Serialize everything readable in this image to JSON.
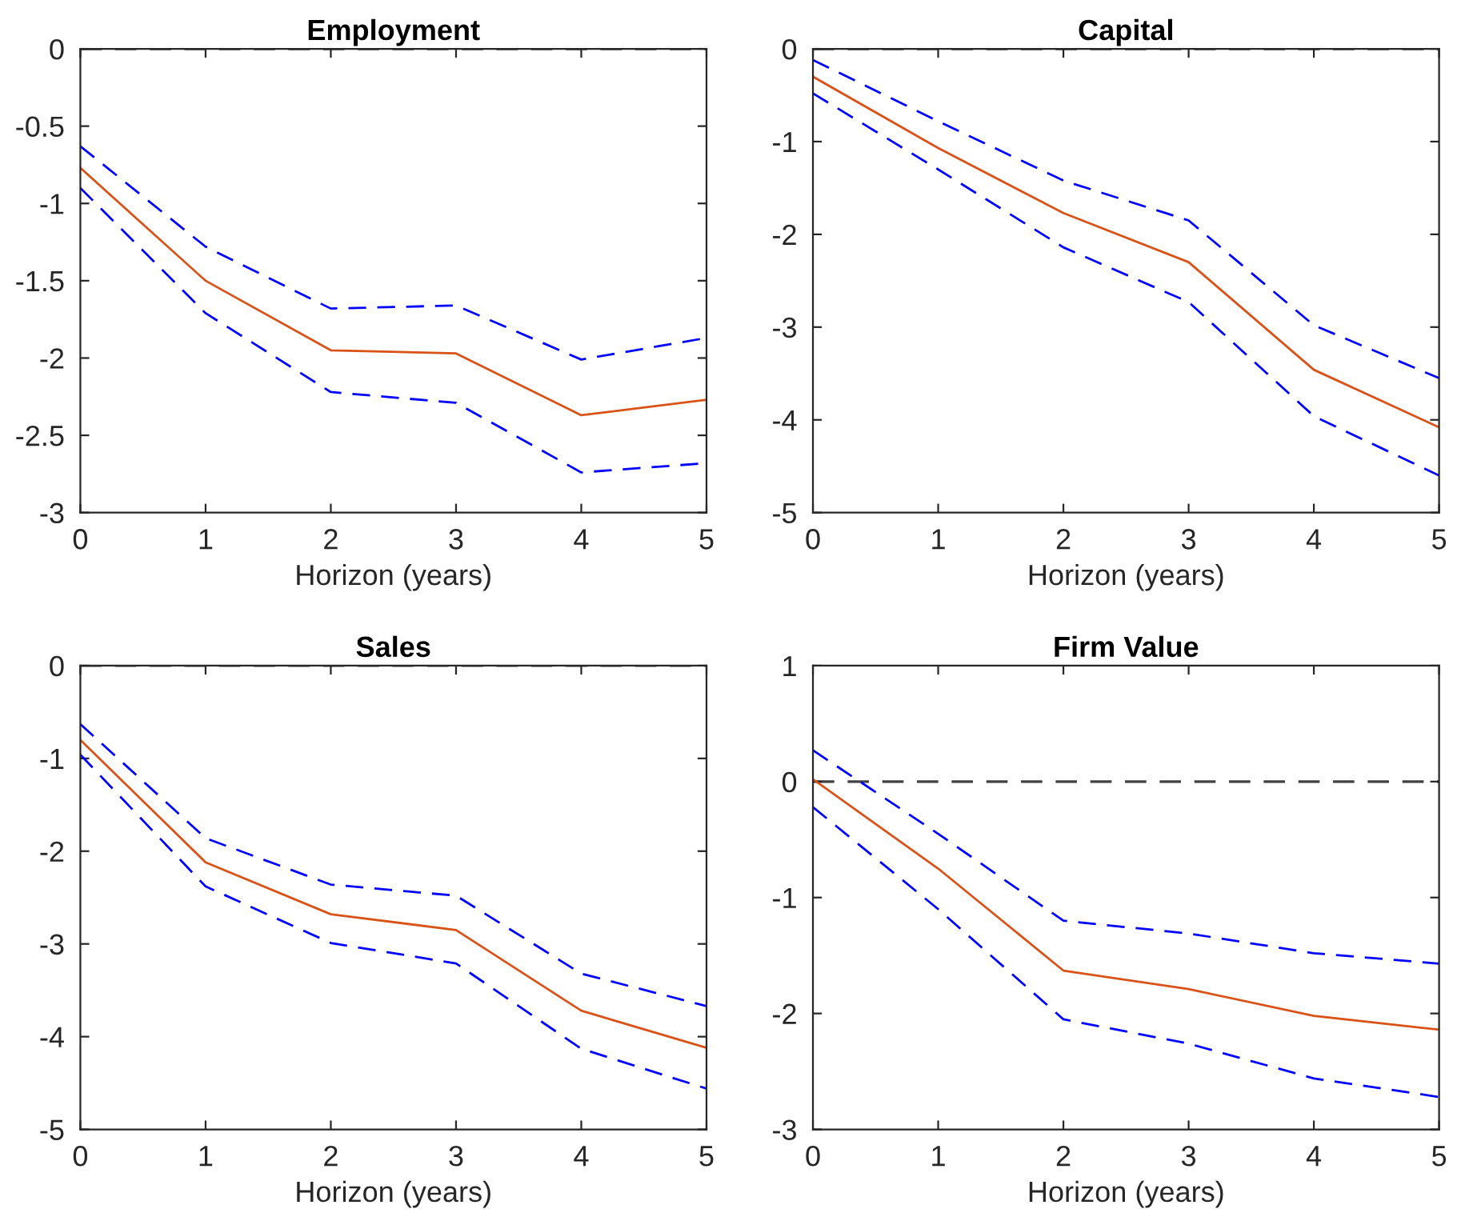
{
  "chart_data": [
    {
      "type": "line",
      "title": "Employment",
      "xlabel": "Horizon (years)",
      "x": [
        0,
        1,
        2,
        3,
        4,
        5
      ],
      "xlim": [
        0,
        5
      ],
      "xticks": [
        0,
        1,
        2,
        3,
        4,
        5
      ],
      "ylim": [
        -3,
        0
      ],
      "yticks": [
        -3,
        -2.5,
        -2,
        -1.5,
        -1,
        -0.5,
        0
      ],
      "grid": false,
      "series": [
        {
          "color": "#0000ff",
          "line_style": "dashed",
          "values": [
            -0.63,
            -1.28,
            -1.68,
            -1.66,
            -2.01,
            -1.87
          ]
        },
        {
          "color": "#d95319",
          "line_style": "solid",
          "values": [
            -0.77,
            -1.5,
            -1.95,
            -1.97,
            -2.37,
            -2.27
          ]
        },
        {
          "color": "#0000ff",
          "line_style": "dashed",
          "values": [
            -0.9,
            -1.71,
            -2.22,
            -2.29,
            -2.74,
            -2.68
          ]
        }
      ],
      "ref_lines": [
        {
          "axis": "y",
          "value": 0,
          "color": "#404040",
          "line_style": "dashed"
        }
      ]
    },
    {
      "type": "line",
      "title": "Capital",
      "xlabel": "Horizon (years)",
      "x": [
        0,
        1,
        2,
        3,
        4,
        5
      ],
      "xlim": [
        0,
        5
      ],
      "xticks": [
        0,
        1,
        2,
        3,
        4,
        5
      ],
      "ylim": [
        -5,
        0
      ],
      "yticks": [
        -5,
        -4,
        -3,
        -2,
        -1,
        0
      ],
      "grid": false,
      "series": [
        {
          "color": "#0000ff",
          "line_style": "dashed",
          "values": [
            -0.12,
            -0.78,
            -1.42,
            -1.85,
            -2.98,
            -3.55
          ]
        },
        {
          "color": "#d95319",
          "line_style": "solid",
          "values": [
            -0.3,
            -1.07,
            -1.77,
            -2.3,
            -3.46,
            -4.08
          ]
        },
        {
          "color": "#0000ff",
          "line_style": "dashed",
          "values": [
            -0.48,
            -1.3,
            -2.14,
            -2.73,
            -3.96,
            -4.6
          ]
        }
      ],
      "ref_lines": [
        {
          "axis": "y",
          "value": 0,
          "color": "#404040",
          "line_style": "dashed"
        }
      ]
    },
    {
      "type": "line",
      "title": "Sales",
      "xlabel": "Horizon (years)",
      "x": [
        0,
        1,
        2,
        3,
        4,
        5
      ],
      "xlim": [
        0,
        5
      ],
      "xticks": [
        0,
        1,
        2,
        3,
        4,
        5
      ],
      "ylim": [
        -5,
        0
      ],
      "yticks": [
        -5,
        -4,
        -3,
        -2,
        -1,
        0
      ],
      "grid": false,
      "series": [
        {
          "color": "#0000ff",
          "line_style": "dashed",
          "values": [
            -0.63,
            -1.86,
            -2.36,
            -2.48,
            -3.32,
            -3.67
          ]
        },
        {
          "color": "#d95319",
          "line_style": "solid",
          "values": [
            -0.8,
            -2.12,
            -2.68,
            -2.85,
            -3.72,
            -4.12
          ]
        },
        {
          "color": "#0000ff",
          "line_style": "dashed",
          "values": [
            -0.96,
            -2.38,
            -2.99,
            -3.21,
            -4.13,
            -4.56
          ]
        }
      ],
      "ref_lines": [
        {
          "axis": "y",
          "value": 0,
          "color": "#404040",
          "line_style": "dashed"
        }
      ]
    },
    {
      "type": "line",
      "title": "Firm Value",
      "xlabel": "Horizon (years)",
      "x": [
        0,
        1,
        2,
        3,
        4,
        5
      ],
      "xlim": [
        0,
        5
      ],
      "xticks": [
        0,
        1,
        2,
        3,
        4,
        5
      ],
      "ylim": [
        -3,
        1
      ],
      "yticks": [
        -3,
        -2,
        -1,
        0,
        1
      ],
      "grid": false,
      "series": [
        {
          "color": "#0000ff",
          "line_style": "dashed",
          "values": [
            0.27,
            -0.45,
            -1.2,
            -1.31,
            -1.48,
            -1.57
          ]
        },
        {
          "color": "#d95319",
          "line_style": "solid",
          "values": [
            0.02,
            -0.75,
            -1.63,
            -1.79,
            -2.02,
            -2.14
          ]
        },
        {
          "color": "#0000ff",
          "line_style": "dashed",
          "values": [
            -0.22,
            -1.1,
            -2.05,
            -2.26,
            -2.56,
            -2.72
          ]
        }
      ],
      "ref_lines": [
        {
          "axis": "y",
          "value": 0,
          "color": "#404040",
          "line_style": "dashed"
        }
      ]
    }
  ]
}
